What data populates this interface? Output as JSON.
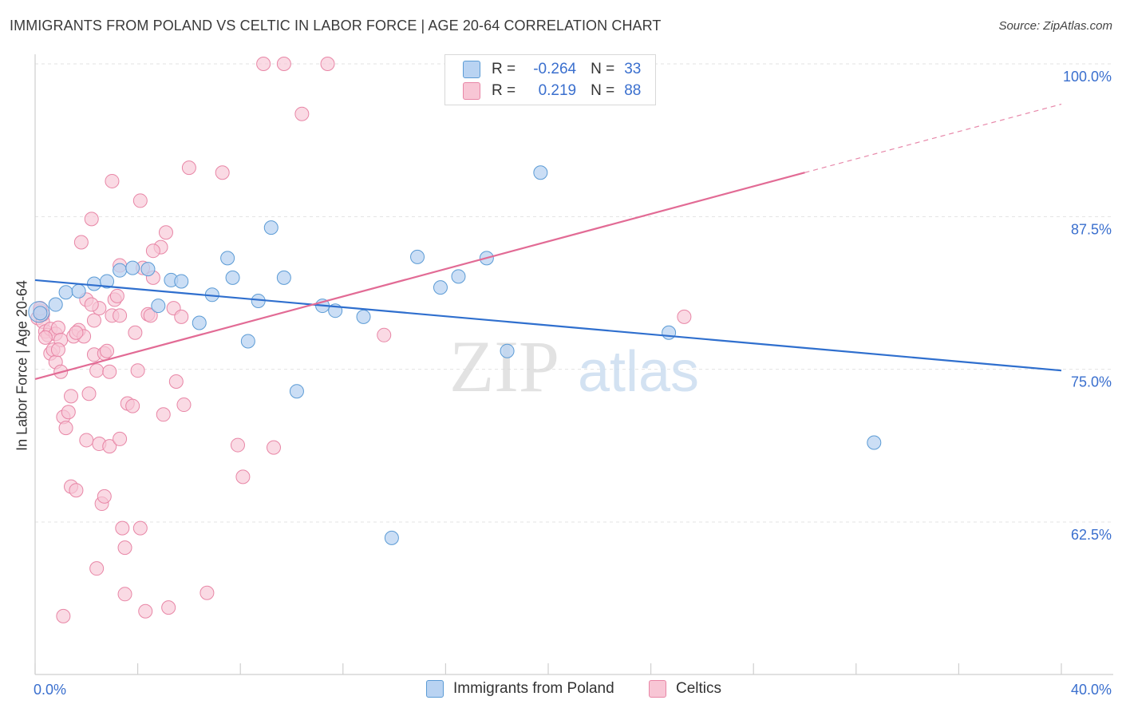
{
  "header": {
    "title": "IMMIGRANTS FROM POLAND VS CELTIC IN LABOR FORCE | AGE 20-64 CORRELATION CHART",
    "source": "Source: ZipAtlas.com"
  },
  "watermark": {
    "zip": "ZIP",
    "atlas": "atlas"
  },
  "legend": {
    "rows": [
      {
        "r_label": "R =",
        "r_value": "-0.264",
        "n_label": "N =",
        "n_value": "33",
        "color": "#a8c8f0"
      },
      {
        "r_label": "R =",
        "r_value": "0.219",
        "n_label": "N =",
        "n_value": "88",
        "color": "#f6b8cb"
      }
    ]
  },
  "bottom_legend": {
    "items": [
      {
        "label": "Immigrants from Poland",
        "color": "#a8c8f0"
      },
      {
        "label": "Celtics",
        "color": "#f6b8cb"
      }
    ]
  },
  "chart_data": {
    "type": "scatter",
    "title": "IMMIGRANTS FROM POLAND VS CELTIC IN LABOR FORCE | AGE 20-64 CORRELATION CHART",
    "xlabel": "",
    "ylabel": "In Labor Force | Age 20-64",
    "xlim": [
      0,
      40
    ],
    "ylim": [
      51.5,
      101.5
    ],
    "x_tick_labels": [
      "0.0%",
      "40.0%"
    ],
    "y_ticks": [
      62.5,
      75.0,
      87.5,
      100.0
    ],
    "y_tick_labels": [
      "62.5%",
      "75.0%",
      "87.5%",
      "100.0%"
    ],
    "grid": "horizontal dashed",
    "legend_position": "top-center",
    "colors": {
      "poland": "#5b9bd5",
      "poland_fill": "#b9d3f2",
      "poland_line": "#2f6fce",
      "celtics": "#e886a6",
      "celtics_fill": "#f8c6d5",
      "celtics_line": "#e26b95",
      "axis_text": "#3a6fce"
    },
    "series": [
      {
        "name": "Immigrants from Poland",
        "trend": {
          "x": [
            0,
            40
          ],
          "y": [
            82.3,
            74.9
          ]
        },
        "points": [
          [
            0.2,
            79.6
          ],
          [
            0.8,
            80.3
          ],
          [
            1.2,
            81.3
          ],
          [
            1.7,
            81.4
          ],
          [
            2.3,
            82.0
          ],
          [
            2.8,
            82.2
          ],
          [
            3.3,
            83.1
          ],
          [
            4.4,
            83.2
          ],
          [
            3.8,
            83.3
          ],
          [
            4.8,
            80.2
          ],
          [
            5.3,
            82.3
          ],
          [
            5.7,
            82.2
          ],
          [
            6.4,
            78.8
          ],
          [
            6.9,
            81.1
          ],
          [
            7.5,
            84.1
          ],
          [
            7.7,
            82.5
          ],
          [
            8.3,
            77.3
          ],
          [
            8.7,
            80.6
          ],
          [
            9.2,
            86.6
          ],
          [
            9.7,
            82.5
          ],
          [
            10.2,
            73.2
          ],
          [
            11.2,
            80.2
          ],
          [
            11.7,
            79.8
          ],
          [
            12.8,
            79.3
          ],
          [
            13.9,
            61.2
          ],
          [
            14.9,
            84.2
          ],
          [
            15.8,
            81.7
          ],
          [
            16.5,
            82.6
          ],
          [
            17.6,
            84.1
          ],
          [
            18.4,
            76.5
          ],
          [
            19.7,
            91.1
          ],
          [
            24.7,
            78.0
          ],
          [
            32.7,
            69.0
          ]
        ]
      },
      {
        "name": "Celtics",
        "trend": {
          "x": [
            0,
            30.0
          ],
          "y": [
            74.2,
            91.1
          ]
        },
        "trend_extension": {
          "x": [
            30.0,
            40
          ],
          "y": [
            91.1,
            96.7
          ]
        },
        "points": [
          [
            0.1,
            79.2
          ],
          [
            0.2,
            79.8
          ],
          [
            0.3,
            78.9
          ],
          [
            0.3,
            79.5
          ],
          [
            0.4,
            78.1
          ],
          [
            0.5,
            77.8
          ],
          [
            0.6,
            78.3
          ],
          [
            0.6,
            76.3
          ],
          [
            0.7,
            76.6
          ],
          [
            0.8,
            75.6
          ],
          [
            0.8,
            77.9
          ],
          [
            0.9,
            78.4
          ],
          [
            1.0,
            74.8
          ],
          [
            1.0,
            77.4
          ],
          [
            1.1,
            71.1
          ],
          [
            1.2,
            70.2
          ],
          [
            1.3,
            71.5
          ],
          [
            1.4,
            72.8
          ],
          [
            1.4,
            65.4
          ],
          [
            1.5,
            77.7
          ],
          [
            1.6,
            65.1
          ],
          [
            1.7,
            78.2
          ],
          [
            1.8,
            85.4
          ],
          [
            1.9,
            77.7
          ],
          [
            2.0,
            69.2
          ],
          [
            2.0,
            80.7
          ],
          [
            2.1,
            73.0
          ],
          [
            2.2,
            87.3
          ],
          [
            2.3,
            79.0
          ],
          [
            2.3,
            76.2
          ],
          [
            2.4,
            74.9
          ],
          [
            2.5,
            80.0
          ],
          [
            2.5,
            68.9
          ],
          [
            2.6,
            64.0
          ],
          [
            2.7,
            64.6
          ],
          [
            2.7,
            76.3
          ],
          [
            2.8,
            76.5
          ],
          [
            2.9,
            74.8
          ],
          [
            2.9,
            68.7
          ],
          [
            3.0,
            79.4
          ],
          [
            3.0,
            90.4
          ],
          [
            3.1,
            80.7
          ],
          [
            3.2,
            81.0
          ],
          [
            3.3,
            79.4
          ],
          [
            3.3,
            69.3
          ],
          [
            3.3,
            83.5
          ],
          [
            3.4,
            62.0
          ],
          [
            3.5,
            60.4
          ],
          [
            3.6,
            72.2
          ],
          [
            3.8,
            72.0
          ],
          [
            3.9,
            78.0
          ],
          [
            4.0,
            74.9
          ],
          [
            4.1,
            88.8
          ],
          [
            4.1,
            62.0
          ],
          [
            4.2,
            83.3
          ],
          [
            4.3,
            55.2
          ],
          [
            4.4,
            79.5
          ],
          [
            4.5,
            79.4
          ],
          [
            4.6,
            82.5
          ],
          [
            4.9,
            85.0
          ],
          [
            5.0,
            71.3
          ],
          [
            5.1,
            86.2
          ],
          [
            5.2,
            55.5
          ],
          [
            5.4,
            80.0
          ],
          [
            5.5,
            74.0
          ],
          [
            5.7,
            79.3
          ],
          [
            5.8,
            72.1
          ],
          [
            6.0,
            91.5
          ],
          [
            6.7,
            56.7
          ],
          [
            7.3,
            91.1
          ],
          [
            7.9,
            68.8
          ],
          [
            8.1,
            66.2
          ],
          [
            8.9,
            100.0
          ],
          [
            9.3,
            68.6
          ],
          [
            9.7,
            100.0
          ],
          [
            10.4,
            95.9
          ],
          [
            11.4,
            100.0
          ],
          [
            13.6,
            77.8
          ],
          [
            25.3,
            79.3
          ],
          [
            1.1,
            54.8
          ],
          [
            2.4,
            58.7
          ],
          [
            3.5,
            56.6
          ],
          [
            0.2,
            80.0
          ],
          [
            0.4,
            77.6
          ],
          [
            0.9,
            76.6
          ],
          [
            1.6,
            78.0
          ],
          [
            2.2,
            80.3
          ],
          [
            4.6,
            84.7
          ]
        ]
      }
    ]
  }
}
